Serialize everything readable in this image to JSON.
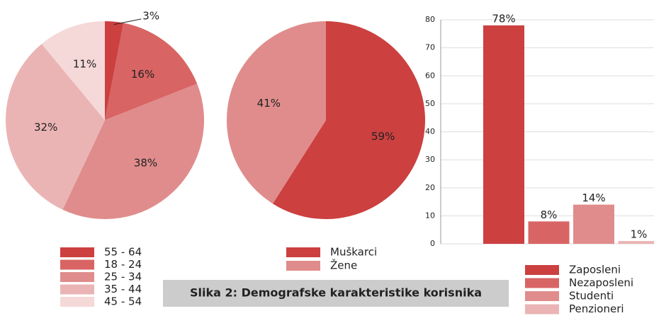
{
  "chart_data": [
    {
      "type": "pie",
      "categories": [
        "55 - 64",
        "18 - 24",
        "25 - 34",
        "35 - 44",
        "45 - 54"
      ],
      "values": [
        3,
        16,
        38,
        32,
        11
      ],
      "value_labels": [
        "3%",
        "16%",
        "38%",
        "32%",
        "11%"
      ],
      "colors": [
        "#cc4040",
        "#d96464",
        "#e08c8c",
        "#ebb4b4",
        "#f5d8d8"
      ]
    },
    {
      "type": "pie",
      "categories": [
        "Muškarci",
        "Žene"
      ],
      "values": [
        59,
        41
      ],
      "value_labels": [
        "59%",
        "41%"
      ],
      "colors": [
        "#cc4040",
        "#e08c8c"
      ]
    },
    {
      "type": "bar",
      "categories": [
        "Zaposleni",
        "Nezaposleni",
        "Studenti",
        "Penzioneri"
      ],
      "values": [
        78,
        8,
        14,
        1
      ],
      "value_labels": [
        "78%",
        "8%",
        "14%",
        "1%"
      ],
      "colors": [
        "#cc4040",
        "#d96464",
        "#e08c8c",
        "#ebb4b4"
      ],
      "ylim": [
        0,
        80
      ],
      "yticks": [
        0,
        10,
        20,
        30,
        40,
        50,
        60,
        70,
        80
      ],
      "grid": true
    }
  ],
  "caption": "Slika 2: Demografske karakteristike korisnika"
}
